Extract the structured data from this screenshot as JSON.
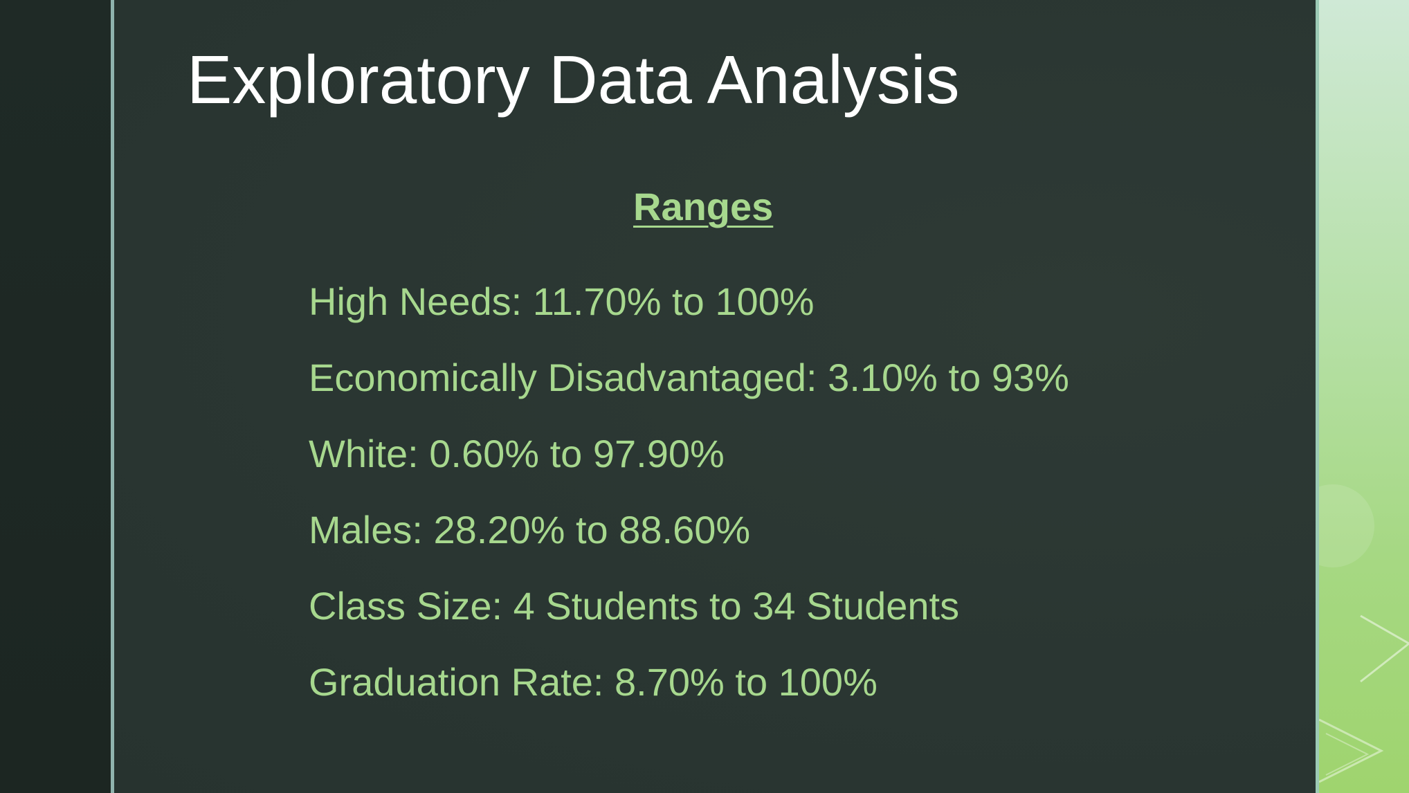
{
  "slide": {
    "title": "Exploratory Data Analysis",
    "subheading": "Ranges",
    "items": [
      "High Needs: 11.70% to 100%",
      "Economically Disadvantaged: 3.10% to 93%",
      "White: 0.60% to 97.90%",
      "Males: 28.20% to 88.60%",
      "Class Size: 4 Students to 34 Students",
      "Graduation Rate: 8.70% to 100%"
    ]
  },
  "colors": {
    "background": "#2a3733",
    "title": "#ffffff",
    "body_text": "#a7d88e",
    "accent_rule": "#8fb3ad",
    "side_band": "#a6d883"
  }
}
